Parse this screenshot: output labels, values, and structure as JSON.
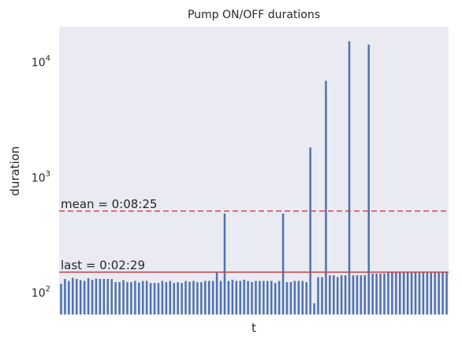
{
  "chart_data": {
    "type": "bar",
    "title": "Pump ON/OFF durations",
    "xlabel": "t",
    "ylabel": "duration",
    "yscale": "log",
    "ylim": [
      64,
      20000
    ],
    "yticks": [
      {
        "value": 100,
        "base": "10",
        "exp": "2"
      },
      {
        "value": 1000,
        "base": "10",
        "exp": "3"
      },
      {
        "value": 10000,
        "base": "10",
        "exp": "4"
      }
    ],
    "grid": false,
    "bar_color": "#4c72b0",
    "line_color": "#c44e52",
    "background": "#eaeaf2",
    "values": [
      118,
      130,
      125,
      133,
      130,
      127,
      125,
      132,
      128,
      131,
      130,
      130,
      130,
      130,
      122,
      122,
      127,
      122,
      122,
      125,
      121,
      125,
      125,
      120,
      120,
      120,
      125,
      122,
      125,
      120,
      122,
      120,
      125,
      123,
      125,
      122,
      122,
      125,
      125,
      125,
      150,
      125,
      480,
      125,
      128,
      125,
      125,
      128,
      125,
      122,
      125,
      125,
      125,
      125,
      125,
      120,
      125,
      480,
      122,
      122,
      125,
      125,
      125,
      122,
      1800,
      80,
      135,
      135,
      6800,
      140,
      140,
      135,
      140,
      140,
      15000,
      140,
      140,
      140,
      140,
      14000,
      145,
      145,
      145,
      145,
      150,
      150,
      150,
      150,
      150,
      150,
      150,
      150,
      150,
      150,
      150,
      150,
      150,
      150,
      150,
      150
    ],
    "reference_lines": [
      {
        "name": "mean",
        "value": 505,
        "label": "mean = 0:08:25",
        "style": "dashed"
      },
      {
        "name": "last",
        "value": 149,
        "label": "last = 0:02:29",
        "style": "solid"
      }
    ]
  }
}
